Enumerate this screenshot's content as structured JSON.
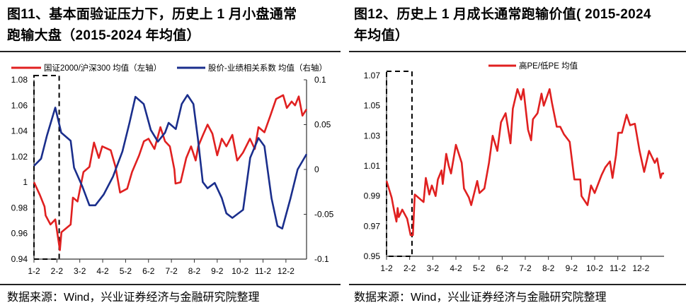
{
  "left": {
    "title_line1": "图11、基本面验证压力下，历史上 1 月小盘通常",
    "title_line2": "跑输大盘（2015-2024 年均值）",
    "source": "数据来源：Wind，兴业证券经济与金融研究院整理"
  },
  "right": {
    "title_line1": "图12、历史上 1 月成长通常跑输价值( 2015-2024",
    "title_line2": "年均值）",
    "source": "数据来源：Wind，兴业证券经济与金融研究院整理"
  },
  "chart_data": [
    {
      "type": "line",
      "categories": [
        "1-2",
        "2-2",
        "3-2",
        "4-2",
        "5-2",
        "6-2",
        "7-2",
        "8-2",
        "9-2",
        "10-2",
        "11-2",
        "12-2"
      ],
      "y_left": {
        "ylim": [
          0.94,
          1.08
        ],
        "ticks": [
          "0.94",
          "0.96",
          "0.98",
          "1",
          "1.02",
          "1.04",
          "1.06",
          "1.08"
        ]
      },
      "y_right": {
        "ylim": [
          -0.1,
          0.1
        ],
        "ticks": [
          "-0.1",
          "-0.05",
          "0",
          "0.05",
          "0.1"
        ]
      },
      "legend_position": "top",
      "highlight_box": [
        "1-2",
        "2-2"
      ],
      "series": [
        {
          "name": "国证2000/沪深300 均值（左轴）",
          "axis": "left",
          "color": "#e02020",
          "points": [
            [
              0,
              1.0
            ],
            [
              0.26,
              0.99
            ],
            [
              0.46,
              0.981
            ],
            [
              0.51,
              0.974
            ],
            [
              0.72,
              0.967
            ],
            [
              0.93,
              0.971
            ],
            [
              1.13,
              0.947
            ],
            [
              1.2,
              0.961
            ],
            [
              1.6,
              0.967
            ],
            [
              1.7,
              0.988
            ],
            [
              1.9,
              0.985
            ],
            [
              2.16,
              1.008
            ],
            [
              2.42,
              1.012
            ],
            [
              2.62,
              1.031
            ],
            [
              2.83,
              1.019
            ],
            [
              2.98,
              1.028
            ],
            [
              3.35,
              1.025
            ],
            [
              3.56,
              1.012
            ],
            [
              3.76,
              0.992
            ],
            [
              4.07,
              0.995
            ],
            [
              4.28,
              1.008
            ],
            [
              4.59,
              1.021
            ],
            [
              4.8,
              1.032
            ],
            [
              5.0,
              1.034
            ],
            [
              5.26,
              1.026
            ],
            [
              5.52,
              1.043
            ],
            [
              5.72,
              1.032
            ],
            [
              5.93,
              1.028
            ],
            [
              6.13,
              1.01
            ],
            [
              6.18,
              0.999
            ],
            [
              6.4,
              1.0
            ],
            [
              6.65,
              1.019
            ],
            [
              6.86,
              1.028
            ],
            [
              7.06,
              1.017
            ],
            [
              7.17,
              1.028
            ],
            [
              7.38,
              1.037
            ],
            [
              7.58,
              1.045
            ],
            [
              7.79,
              1.038
            ],
            [
              8.0,
              1.021
            ],
            [
              8.2,
              1.034
            ],
            [
              8.4,
              1.028
            ],
            [
              8.66,
              1.037
            ],
            [
              8.87,
              1.017
            ],
            [
              9.12,
              1.023
            ],
            [
              9.43,
              1.034
            ],
            [
              9.64,
              1.026
            ],
            [
              9.8,
              1.043
            ],
            [
              10.06,
              1.039
            ],
            [
              10.32,
              1.052
            ],
            [
              10.57,
              1.065
            ],
            [
              10.88,
              1.068
            ],
            [
              11.04,
              1.058
            ],
            [
              11.25,
              1.063
            ],
            [
              11.4,
              1.06
            ],
            [
              11.56,
              1.067
            ],
            [
              11.72,
              1.052
            ],
            [
              11.9,
              1.057
            ]
          ]
        },
        {
          "name": "股价-业绩相关系数 均值（右轴）",
          "axis": "right",
          "color": "#1a2e8c",
          "points": [
            [
              0,
              0.004
            ],
            [
              0.31,
              0.012
            ],
            [
              0.57,
              0.038
            ],
            [
              0.93,
              0.069
            ],
            [
              1.19,
              0.041
            ],
            [
              1.6,
              0.032
            ],
            [
              1.75,
              0.002
            ],
            [
              2.11,
              -0.019
            ],
            [
              2.42,
              -0.04
            ],
            [
              2.68,
              -0.04
            ],
            [
              3.04,
              -0.028
            ],
            [
              3.45,
              -0.008
            ],
            [
              3.86,
              0.02
            ],
            [
              4.17,
              0.052
            ],
            [
              4.43,
              0.081
            ],
            [
              4.79,
              0.073
            ],
            [
              5.1,
              0.044
            ],
            [
              5.41,
              0.031
            ],
            [
              5.72,
              0.041
            ],
            [
              5.88,
              0.052
            ],
            [
              6.19,
              0.045
            ],
            [
              6.45,
              0.073
            ],
            [
              6.7,
              0.083
            ],
            [
              6.96,
              0.073
            ],
            [
              7.16,
              0.034
            ],
            [
              7.37,
              -0.014
            ],
            [
              7.58,
              -0.021
            ],
            [
              7.89,
              -0.015
            ],
            [
              8.2,
              -0.032
            ],
            [
              8.4,
              -0.049
            ],
            [
              8.66,
              -0.054
            ],
            [
              9.13,
              -0.045
            ],
            [
              9.44,
              0.013
            ],
            [
              9.8,
              0.035
            ],
            [
              10.06,
              0.026
            ],
            [
              10.37,
              -0.032
            ],
            [
              10.63,
              -0.063
            ],
            [
              10.84,
              -0.066
            ],
            [
              11.2,
              -0.032
            ],
            [
              11.51,
              0.0
            ],
            [
              11.9,
              0.017
            ]
          ]
        }
      ]
    },
    {
      "type": "line",
      "categories": [
        "1-2",
        "2-2",
        "3-2",
        "4-2",
        "5-2",
        "6-2",
        "7-2",
        "8-2",
        "9-2",
        "10-2",
        "11-2",
        "12-2"
      ],
      "y_left": {
        "ylim": [
          0.95,
          1.07
        ],
        "ticks": [
          "0.95",
          "0.97",
          "0.99",
          "1.01",
          "1.03",
          "1.05",
          "1.07"
        ]
      },
      "legend_position": "top",
      "highlight_box": [
        "1-2",
        "2-2"
      ],
      "series": [
        {
          "name": "高PE/低PE 均值",
          "axis": "left",
          "color": "#e02020",
          "points": [
            [
              0,
              1.0
            ],
            [
              0.22,
              0.989
            ],
            [
              0.33,
              0.98
            ],
            [
              0.43,
              0.973
            ],
            [
              0.48,
              0.982
            ],
            [
              0.53,
              0.976
            ],
            [
              0.68,
              0.981
            ],
            [
              0.89,
              0.975
            ],
            [
              1.04,
              0.964
            ],
            [
              1.14,
              0.964
            ],
            [
              1.22,
              0.991
            ],
            [
              1.6,
              0.986
            ],
            [
              1.7,
              1.002
            ],
            [
              1.85,
              0.991
            ],
            [
              1.96,
              0.997
            ],
            [
              2.12,
              0.99
            ],
            [
              2.22,
              1.001
            ],
            [
              2.38,
              1.007
            ],
            [
              2.43,
              0.998
            ],
            [
              2.58,
              1.018
            ],
            [
              2.69,
              1.01
            ],
            [
              2.79,
              1.005
            ],
            [
              3.0,
              1.024
            ],
            [
              3.25,
              1.012
            ],
            [
              3.35,
              0.995
            ],
            [
              3.56,
              0.989
            ],
            [
              3.66,
              0.984
            ],
            [
              3.92,
              1.0
            ],
            [
              4.02,
              0.992
            ],
            [
              4.23,
              0.995
            ],
            [
              4.43,
              1.012
            ],
            [
              4.59,
              1.03
            ],
            [
              4.79,
              1.02
            ],
            [
              4.95,
              1.039
            ],
            [
              5.15,
              1.045
            ],
            [
              5.36,
              1.025
            ],
            [
              5.46,
              1.048
            ],
            [
              5.66,
              1.061
            ],
            [
              5.82,
              1.054
            ],
            [
              5.92,
              1.061
            ],
            [
              6.12,
              1.034
            ],
            [
              6.25,
              1.027
            ],
            [
              6.33,
              1.041
            ],
            [
              6.53,
              1.045
            ],
            [
              6.7,
              1.058
            ],
            [
              6.8,
              1.05
            ],
            [
              7.05,
              1.061
            ],
            [
              7.15,
              1.052
            ],
            [
              7.36,
              1.036
            ],
            [
              7.51,
              1.036
            ],
            [
              7.67,
              1.031
            ],
            [
              7.92,
              1.026
            ],
            [
              8.12,
              1.001
            ],
            [
              8.38,
              1.001
            ],
            [
              8.43,
              0.99
            ],
            [
              8.69,
              0.984
            ],
            [
              8.84,
              0.997
            ],
            [
              9.0,
              0.992
            ],
            [
              9.3,
              1.004
            ],
            [
              9.46,
              1.009
            ],
            [
              9.66,
              1.013
            ],
            [
              9.77,
              1.002
            ],
            [
              9.92,
              1.017
            ],
            [
              10.02,
              1.032
            ],
            [
              10.18,
              1.032
            ],
            [
              10.38,
              1.044
            ],
            [
              10.53,
              1.037
            ],
            [
              10.74,
              1.038
            ],
            [
              10.94,
              1.02
            ],
            [
              11.14,
              1.006
            ],
            [
              11.35,
              1.02
            ],
            [
              11.6,
              1.012
            ],
            [
              11.7,
              1.015
            ],
            [
              11.85,
              1.002
            ],
            [
              11.91,
              1.005
            ],
            [
              12.0,
              1.005
            ]
          ]
        }
      ]
    }
  ]
}
